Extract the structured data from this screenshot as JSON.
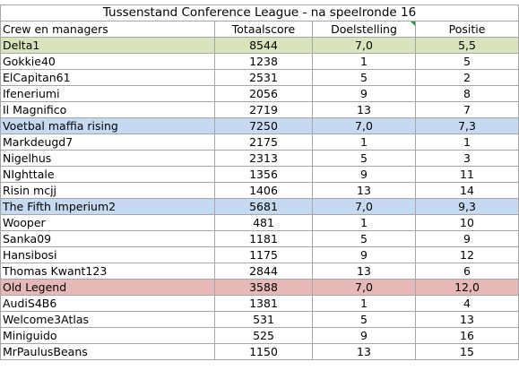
{
  "title": "Tussenstand Conference League - na speelronde 16",
  "headers": {
    "name": "Crew en managers",
    "score": "Totaalscore",
    "goal": "Doelstelling",
    "position": "Positie"
  },
  "rows": [
    {
      "name": "Delta1",
      "score": "8544",
      "goal": "7,0",
      "position": "5,5",
      "highlight": "green"
    },
    {
      "name": "Gokkie40",
      "score": "1238",
      "goal": "1",
      "position": "5",
      "highlight": ""
    },
    {
      "name": "ElCapitan61",
      "score": "2531",
      "goal": "5",
      "position": "2",
      "highlight": ""
    },
    {
      "name": "Ifeneriumi",
      "score": "2056",
      "goal": "9",
      "position": "8",
      "highlight": ""
    },
    {
      "name": "Il Magnifico",
      "score": "2719",
      "goal": "13",
      "position": "7",
      "highlight": ""
    },
    {
      "name": "Voetbal maffia rising",
      "score": "7250",
      "goal": "7,0",
      "position": "7,3",
      "highlight": "blue"
    },
    {
      "name": "Markdeugd7",
      "score": "2175",
      "goal": "1",
      "position": "1",
      "highlight": ""
    },
    {
      "name": "Nigelhus",
      "score": "2313",
      "goal": "5",
      "position": "3",
      "highlight": ""
    },
    {
      "name": "NIghttale",
      "score": "1356",
      "goal": "9",
      "position": "11",
      "highlight": ""
    },
    {
      "name": "Risin mcjj",
      "score": "1406",
      "goal": "13",
      "position": "14",
      "highlight": ""
    },
    {
      "name": "The Fifth Imperium2",
      "score": "5681",
      "goal": "7,0",
      "position": "9,3",
      "highlight": "blue"
    },
    {
      "name": "Wooper",
      "score": "481",
      "goal": "1",
      "position": "10",
      "highlight": ""
    },
    {
      "name": "Sanka09",
      "score": "1181",
      "goal": "5",
      "position": "9",
      "highlight": ""
    },
    {
      "name": "Hansibosi",
      "score": "1175",
      "goal": "9",
      "position": "12",
      "highlight": ""
    },
    {
      "name": "Thomas Kwant123",
      "score": "2844",
      "goal": "13",
      "position": "6",
      "highlight": ""
    },
    {
      "name": "Old Legend",
      "score": "3588",
      "goal": "7,0",
      "position": "12,0",
      "highlight": "red"
    },
    {
      "name": "AudiS4B6",
      "score": "1381",
      "goal": "1",
      "position": "4",
      "highlight": ""
    },
    {
      "name": "Welcome3Atlas",
      "score": "531",
      "goal": "5",
      "position": "13",
      "highlight": ""
    },
    {
      "name": "Miniguido",
      "score": "525",
      "goal": "9",
      "position": "16",
      "highlight": ""
    },
    {
      "name": "MrPaulusBeans",
      "score": "1150",
      "goal": "13",
      "position": "15",
      "highlight": ""
    }
  ],
  "colors": {
    "green": "#d8e4bc",
    "blue": "#c5d9f1",
    "red": "#e6b8b7",
    "comment_marker": "#17a04a"
  }
}
